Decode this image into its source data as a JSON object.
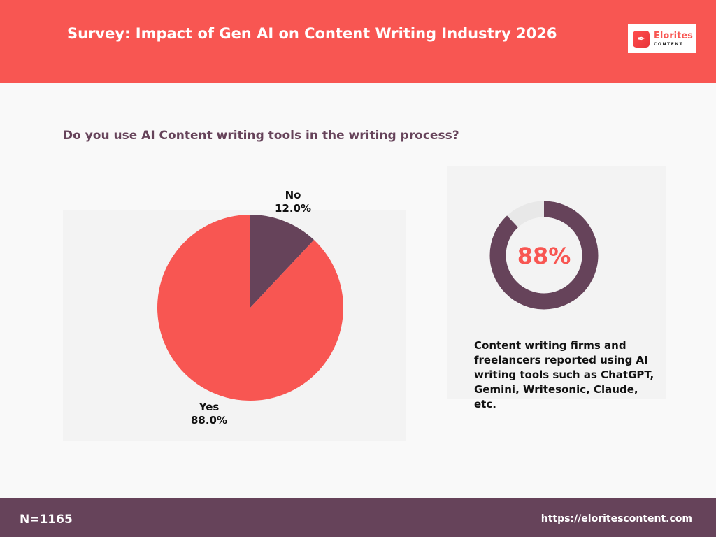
{
  "header": {
    "title": "Survey: Impact of Gen AI on Content Writing Industry 2026"
  },
  "logo": {
    "name": "Elorites",
    "sub": "CONTENT",
    "icon": "pen-nib-icon"
  },
  "colors": {
    "header": "#f85652",
    "yes": "#f85652",
    "no": "#66435a",
    "footer": "#66435a",
    "donut_track": "#e8e8e8"
  },
  "chart_data": [
    {
      "type": "pie",
      "title": "Do you use AI Content writing tools in the writing process?",
      "categories": [
        "No",
        "Yes"
      ],
      "values": [
        12.0,
        88.0
      ],
      "labels": [
        "12.0%",
        "88.0%"
      ]
    },
    {
      "type": "pie",
      "subtype": "donut",
      "values": [
        88,
        12
      ],
      "center_label": "88%"
    }
  ],
  "stat": {
    "description": "Content writing firms and freelancers reported using AI writing tools such as ChatGPT, Gemini, Writesonic, Claude, etc."
  },
  "footer": {
    "n": "N=1165",
    "url": "https://eloritescontent.com"
  }
}
